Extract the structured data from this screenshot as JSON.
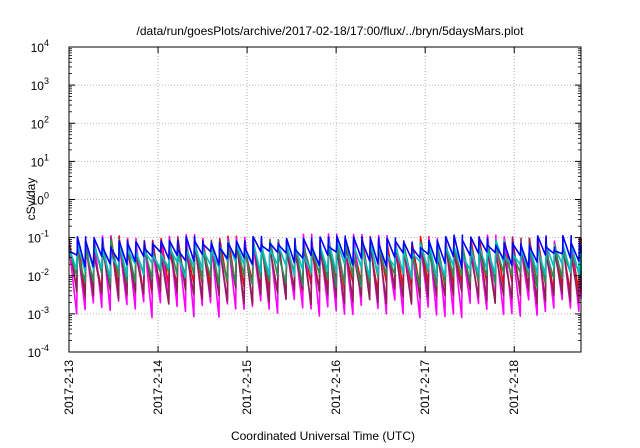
{
  "chart_data": {
    "type": "line",
    "title": "/data/run/goesPlots/archive/2017-02-18/17:00/flux/../bryn/5daysMars.plot",
    "xlabel": "Coordinated Universal Time (UTC)",
    "ylabel": "cSv/day",
    "y_scale": "log",
    "ylim": [
      0.0001,
      10000
    ],
    "y_ticks": [
      {
        "base": "10",
        "exp": "4"
      },
      {
        "base": "10",
        "exp": "3"
      },
      {
        "base": "10",
        "exp": "2"
      },
      {
        "base": "10",
        "exp": "1"
      },
      {
        "base": "10",
        "exp": "0"
      },
      {
        "base": "10",
        "exp": "-1"
      },
      {
        "base": "10",
        "exp": "-2"
      },
      {
        "base": "10",
        "exp": "-3"
      },
      {
        "base": "10",
        "exp": "-4"
      }
    ],
    "x_ticks": [
      "2017-2-13",
      "2017-2-14",
      "2017-2-15",
      "2017-2-16",
      "2017-2-17",
      "2017-2-18"
    ],
    "xlim_days": [
      0,
      5.75
    ],
    "grid": true,
    "legend": "none",
    "cycle_days": 0.094,
    "series": [
      {
        "color": "#ff0000",
        "peak_log": [
          -0.95,
          -1.4
        ],
        "trough_log": [
          -2.15,
          -2.5
        ]
      },
      {
        "color": "#ff00ff",
        "peak_log": [
          -0.9,
          -1.3
        ],
        "trough_log": [
          -2.6,
          -3.1
        ]
      },
      {
        "color": "#8b2252",
        "peak_log": [
          -1.0,
          -1.5
        ],
        "trough_log": [
          -2.3,
          -2.75
        ]
      },
      {
        "color": "#2e8b57",
        "peak_log": [
          -1.05,
          -1.45
        ],
        "trough_log": [
          -1.9,
          -2.3
        ]
      },
      {
        "color": "#00c0c0",
        "peak_log": [
          -1.05,
          -1.5
        ],
        "trough_log": [
          -1.6,
          -2.05
        ]
      },
      {
        "color": "#0000ff",
        "peak_log": [
          -0.9,
          -1.35
        ],
        "trough_log": [
          -1.35,
          -1.8
        ]
      }
    ]
  }
}
